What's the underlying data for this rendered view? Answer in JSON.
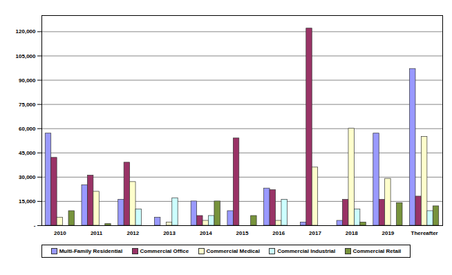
{
  "chart_data": {
    "type": "bar",
    "categories": [
      "2010",
      "2011",
      "2012",
      "2013",
      "2014",
      "2015",
      "2016",
      "2017",
      "2018",
      "2019",
      "Thereafter"
    ],
    "series": [
      {
        "name": "Multi-Family Residential",
        "color": "#9999ff",
        "values": [
          57000,
          25000,
          16000,
          5000,
          15000,
          9000,
          23000,
          2000,
          3000,
          57000,
          97000
        ]
      },
      {
        "name": "Commercial Office",
        "color": "#993366",
        "values": [
          42000,
          31000,
          39000,
          0,
          6000,
          54000,
          22000,
          122000,
          16000,
          16000,
          18000
        ]
      },
      {
        "name": "Commercial Medical",
        "color": "#ffffcc",
        "values": [
          5000,
          21000,
          27000,
          2000,
          3000,
          0,
          3000,
          36000,
          60000,
          29000,
          55000
        ]
      },
      {
        "name": "Commercial Industrial",
        "color": "#ccffff",
        "values": [
          0,
          0,
          10000,
          17000,
          6000,
          0,
          16000,
          0,
          10000,
          0,
          9000
        ]
      },
      {
        "name": "Commercial Retail",
        "color": "#77933c",
        "values": [
          9000,
          1000,
          0,
          0,
          15000,
          6000,
          0,
          0,
          2000,
          14000,
          12000
        ]
      }
    ],
    "ylim": [
      0,
      130000
    ],
    "yticks": [
      {
        "value": 0,
        "label": "-"
      },
      {
        "value": 15000,
        "label": "15,000"
      },
      {
        "value": 30000,
        "label": "30,000"
      },
      {
        "value": 45000,
        "label": "45,000"
      },
      {
        "value": 60000,
        "label": "60,000"
      },
      {
        "value": 75000,
        "label": "75,000"
      },
      {
        "value": 90000,
        "label": "90,000"
      },
      {
        "value": 105000,
        "label": "105,000"
      },
      {
        "value": 120000,
        "label": "120,000"
      }
    ],
    "grid": true,
    "legend": "bottom"
  }
}
